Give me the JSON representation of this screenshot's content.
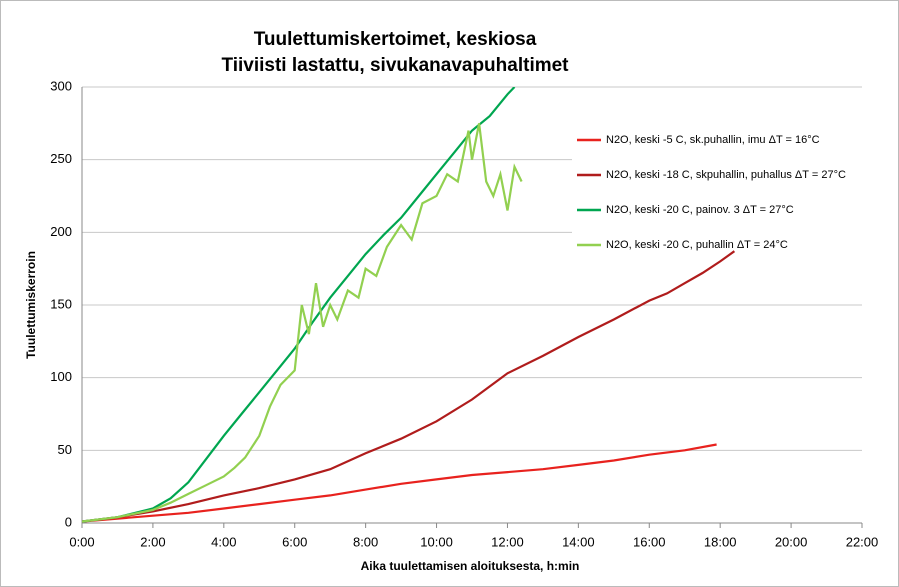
{
  "chart_data": {
    "type": "line",
    "title": "Tuulettumiskertoimet, keskiosa",
    "subtitle": "Tiiviisti lastattu, sivukanavapuhaltimet",
    "x_label": "Aika tuulettamisen aloituksesta, h:min",
    "y_label": "Tuulettumiskerroin",
    "xlim": [
      0,
      22
    ],
    "xticks": [
      {
        "value": 0,
        "label": "0:00"
      },
      {
        "value": 2,
        "label": "2:00"
      },
      {
        "value": 4,
        "label": "4:00"
      },
      {
        "value": 6,
        "label": "6:00"
      },
      {
        "value": 8,
        "label": "8:00"
      },
      {
        "value": 10,
        "label": "10:00"
      },
      {
        "value": 12,
        "label": "12:00"
      },
      {
        "value": 14,
        "label": "14:00"
      },
      {
        "value": 16,
        "label": "16:00"
      },
      {
        "value": 18,
        "label": "18:00"
      },
      {
        "value": 20,
        "label": "20:00"
      },
      {
        "value": 22,
        "label": "22:00"
      }
    ],
    "ylim": [
      0,
      300
    ],
    "yticks": [
      0,
      50,
      100,
      150,
      200,
      250,
      300
    ],
    "grid": true,
    "legend": "right",
    "series": [
      {
        "name": "N2O, keski  -5 C, sk.puhallin, imu ΔT = 16°C",
        "color": "#e8221e",
        "x": [
          0,
          1,
          2,
          3,
          4,
          5,
          6,
          7,
          8,
          9,
          10,
          11,
          12,
          13,
          14,
          15,
          16,
          17,
          17.9
        ],
        "values": [
          1,
          3,
          5,
          7,
          10,
          13,
          16,
          19,
          23,
          27,
          30,
          33,
          35,
          37,
          40,
          43,
          47,
          50,
          54
        ]
      },
      {
        "name": "N2O, keski  -18 C, skpuhallin, puhallus ΔT = 27°C",
        "color": "#b01c1c",
        "x": [
          0,
          1,
          2,
          3,
          4,
          5,
          6,
          7,
          8,
          9,
          10,
          11,
          12,
          13,
          14,
          15,
          16,
          16.5,
          17,
          17.5,
          18,
          18.4
        ],
        "values": [
          1,
          4,
          8,
          13,
          19,
          24,
          30,
          37,
          48,
          58,
          70,
          85,
          103,
          115,
          128,
          140,
          153,
          158,
          165,
          172,
          180,
          187
        ]
      },
      {
        "name": "N2O, keski  -20 C, painov. 3 ΔT = 27°C",
        "color": "#00a650",
        "x": [
          0,
          1,
          2,
          2.5,
          3,
          3.5,
          4,
          4.5,
          5,
          5.5,
          6,
          6.5,
          7,
          7.5,
          8,
          8.5,
          9,
          9.5,
          10,
          10.5,
          11,
          11.5,
          12,
          12.2
        ],
        "values": [
          1,
          4,
          10,
          17,
          28,
          44,
          60,
          75,
          90,
          105,
          120,
          138,
          155,
          170,
          185,
          198,
          210,
          225,
          240,
          255,
          270,
          280,
          295,
          300
        ]
      },
      {
        "name": "N2O, keski  -20 C, puhallin ΔT = 24°C",
        "color": "#92d050",
        "x": [
          0,
          1,
          2,
          2.5,
          3,
          3.5,
          4,
          4.3,
          4.6,
          5,
          5.3,
          5.6,
          6,
          6.2,
          6.4,
          6.6,
          6.8,
          7,
          7.2,
          7.5,
          7.8,
          8,
          8.3,
          8.6,
          9,
          9.3,
          9.6,
          10,
          10.3,
          10.6,
          10.9,
          11,
          11.2,
          11.4,
          11.6,
          11.8,
          12,
          12.2,
          12.4
        ],
        "values": [
          1,
          4,
          9,
          14,
          20,
          26,
          32,
          38,
          45,
          60,
          80,
          95,
          105,
          150,
          130,
          165,
          135,
          150,
          140,
          160,
          155,
          175,
          170,
          190,
          205,
          195,
          220,
          225,
          240,
          235,
          270,
          250,
          275,
          235,
          225,
          240,
          215,
          245,
          235
        ]
      }
    ]
  }
}
